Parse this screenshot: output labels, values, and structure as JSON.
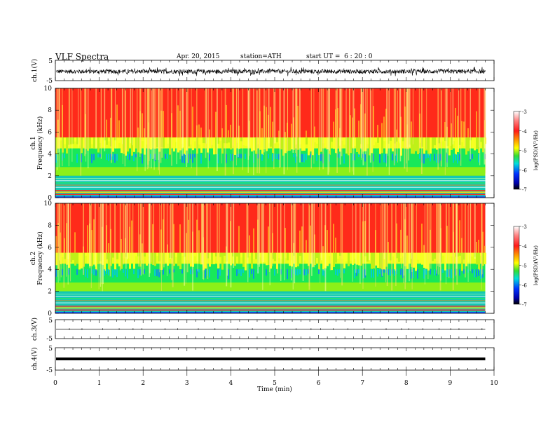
{
  "header": {
    "title": "VLF Spectra",
    "date": "Apr. 20, 2015",
    "station": "station=ATH",
    "start": "start UT =  6 : 20 : 0"
  },
  "chart_data": [
    {
      "type": "line",
      "panel": "ch1-waveform",
      "ylabel": "ch.1(V)",
      "yticks": [
        "5",
        "-5"
      ],
      "ylim": [
        -5,
        5
      ],
      "trace": "dense black noise waveform centered near -0.5 V with bursts to about ±3 V"
    },
    {
      "type": "heatmap",
      "panel": "ch1-spectrogram",
      "ylabel": "Frequency (kHz)",
      "panel_label": "ch.1",
      "yticks": [
        "10",
        "8",
        "6",
        "4",
        "2",
        "0"
      ],
      "ylim": [
        0,
        10
      ],
      "x_end_min": 9.8,
      "colorbar": {
        "label": "log(PSD)(V²/Hz)",
        "ticks": [
          "-3",
          "-4",
          "-5",
          "-6",
          "-7"
        ],
        "range": [
          -7,
          -3
        ]
      },
      "bands": [
        {
          "from_khz": 5.5,
          "to_khz": 10,
          "log_psd": -3.9,
          "color": "#ff2a1a"
        },
        {
          "from_khz": 4.5,
          "to_khz": 5.5,
          "log_psd": -4.6,
          "color": "#e8ff1a"
        },
        {
          "from_khz": 2.8,
          "to_khz": 4.5,
          "log_psd": -5.2,
          "color": "#18e85a"
        },
        {
          "from_khz": 2.0,
          "to_khz": 2.8,
          "log_psd": -5.0,
          "color": "#8cf018"
        },
        {
          "from_khz": 0,
          "to_khz": 2.0,
          "log_psd": -5.6,
          "color": "#14c8b4"
        }
      ]
    },
    {
      "type": "heatmap",
      "panel": "ch2-spectrogram",
      "ylabel": "Frequency (kHz)",
      "panel_label": "ch.2",
      "yticks": [
        "10",
        "8",
        "6",
        "4",
        "2",
        "0"
      ],
      "ylim": [
        0,
        10
      ],
      "x_end_min": 9.8,
      "colorbar": {
        "label": "log(PSD)(V²/Hz)",
        "ticks": [
          "-3",
          "-4",
          "-5",
          "-6",
          "-7"
        ],
        "range": [
          -7,
          -3
        ]
      },
      "bands": [
        {
          "from_khz": 5.5,
          "to_khz": 10,
          "log_psd": -3.9,
          "color": "#ff2a1a"
        },
        {
          "from_khz": 4.5,
          "to_khz": 5.5,
          "log_psd": -4.6,
          "color": "#e8ff1a"
        },
        {
          "from_khz": 2.8,
          "to_khz": 4.5,
          "log_psd": -5.2,
          "color": "#18e85a"
        },
        {
          "from_khz": 2.0,
          "to_khz": 2.8,
          "log_psd": -5.0,
          "color": "#8cf018"
        },
        {
          "from_khz": 0,
          "to_khz": 2.0,
          "log_psd": -5.6,
          "color": "#14c8b4"
        }
      ]
    },
    {
      "type": "line",
      "panel": "ch3-waveform",
      "ylabel": "ch.3(V)",
      "yticks": [
        "5",
        "-5"
      ],
      "ylim": [
        -5,
        5
      ],
      "trace": "thin flat line near 0 V"
    },
    {
      "type": "line",
      "panel": "ch4-waveform",
      "ylabel": "ch.4(V)",
      "yticks": [
        "5",
        "-5"
      ],
      "ylim": [
        -5,
        5
      ],
      "trace": "thick flat line near 0 V"
    }
  ],
  "x_axis": {
    "label": "Time (min)",
    "ticks": [
      "0",
      "1",
      "2",
      "3",
      "4",
      "5",
      "6",
      "7",
      "8",
      "9",
      "10"
    ],
    "range": [
      0,
      10
    ]
  }
}
